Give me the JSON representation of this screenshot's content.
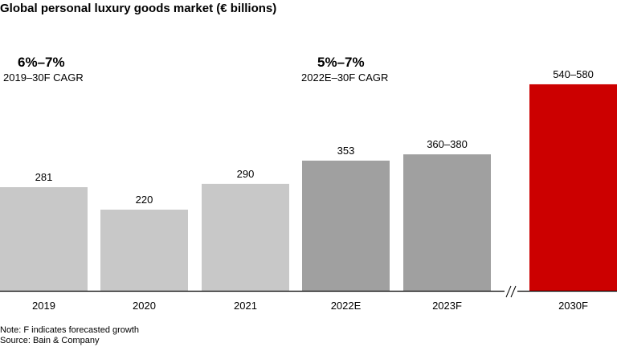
{
  "chart_data": {
    "type": "bar",
    "title": "Global personal luxury goods market (€ billions)",
    "categories": [
      "2019",
      "2020",
      "2021",
      "2022E",
      "2023F",
      "2030F"
    ],
    "values": [
      281,
      220,
      290,
      353,
      [
        360,
        380
      ],
      [
        540,
        580
      ]
    ],
    "data_labels": [
      "281",
      "220",
      "290",
      "353",
      "360–380",
      "540–580"
    ],
    "colors": [
      "#c8c8c8",
      "#c8c8c8",
      "#c8c8c8",
      "#a0a0a0",
      "#a0a0a0",
      "#cc0000"
    ],
    "axis_break_between": [
      "2023F",
      "2030F"
    ],
    "grid": false,
    "annotations": [
      {
        "value": "6%–7%",
        "label": "2019–30F CAGR"
      },
      {
        "value": "5%–7%",
        "label": "2022E–30F CAGR"
      }
    ]
  },
  "notes": [
    "Note: F indicates forecasted growth",
    "Source: Bain & Company"
  ]
}
